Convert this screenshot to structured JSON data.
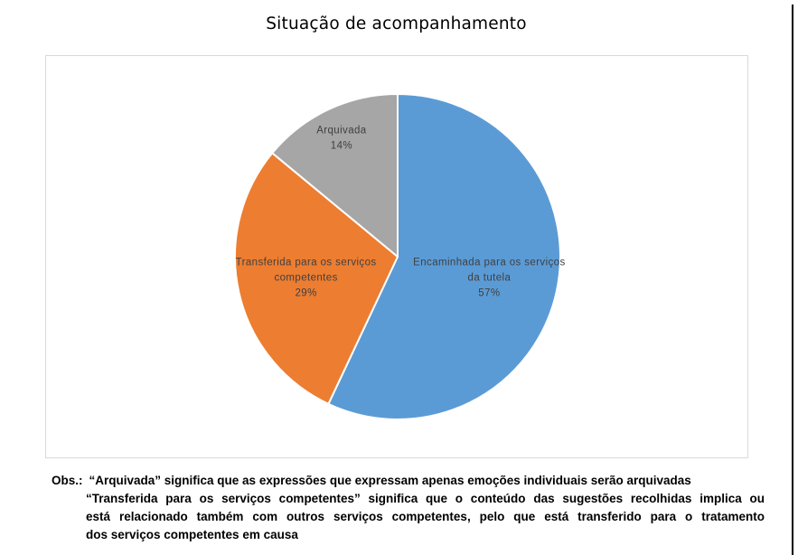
{
  "title": "Situação de acompanhamento",
  "chart_data": {
    "type": "pie",
    "title": "Situação de acompanhamento",
    "categories": [
      "Encaminhada para os serviços da tutela",
      "Transferida para os serviços competentes",
      "Arquivada"
    ],
    "values": [
      57,
      29,
      14
    ],
    "unit": "%",
    "legend": "none",
    "label_position": "inside",
    "start_angle_deg": 0,
    "direction": "clockwise",
    "label_color": "#404040",
    "slice_border_color": "#ffffff",
    "chart_border_color": "#d9d9d9",
    "slices": [
      {
        "name": "Encaminhada para os serviços da tutela",
        "value": 57,
        "pct_label": "57%",
        "color": "#5B9BD5",
        "label_lines": [
          "Encaminhada para os serviços",
          "da tutela",
          "57%"
        ]
      },
      {
        "name": "Transferida para os serviços competentes",
        "value": 29,
        "pct_label": "29%",
        "color": "#ED7D31",
        "label_lines": [
          "Transferida para os serviços",
          "competentes",
          "29%"
        ]
      },
      {
        "name": "Arquivada",
        "value": 14,
        "pct_label": "14%",
        "color": "#A6A6A6",
        "label_lines": [
          "Arquivada",
          "14%"
        ]
      }
    ]
  },
  "note": {
    "prefix": "Obs.:",
    "lines": [
      "“Arquivada” significa que as expressões que expressam apenas emoções individuais serão arquivadas",
      "“Transferida para os serviços competentes” significa que o conteúdo das sugestões recolhidas implica ou",
      "está relacionado também com outros serviços competentes, pelo que está transferido para o tratamento",
      "dos serviços competentes em causa"
    ]
  }
}
